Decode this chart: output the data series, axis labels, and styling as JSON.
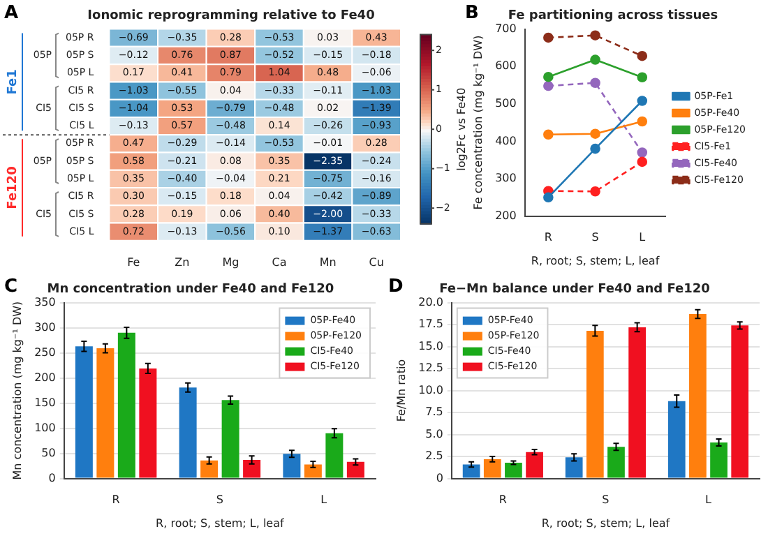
{
  "chart_data": [
    {
      "type": "heatmap",
      "title": "Ionomic reprogramming relative to Fe40",
      "categories": [
        "Fe",
        "Zn",
        "Mg",
        "Ca",
        "Mn",
        "Cu"
      ],
      "y_categories": [
        "05P R",
        "05P S",
        "05P L",
        "CI5 R",
        "CI5 S",
        "CI5 L",
        "05P R",
        "05P S",
        "05P L",
        "CI5 R",
        "CI5 S",
        "CI5 L"
      ],
      "cells": [
        [
          -0.69,
          -0.35,
          0.28,
          -0.53,
          0.03,
          0.43
        ],
        [
          -0.12,
          0.76,
          0.87,
          -0.52,
          -0.15,
          -0.18
        ],
        [
          0.17,
          0.41,
          0.79,
          1.04,
          0.48,
          -0.06
        ],
        [
          -1.03,
          -0.55,
          0.04,
          -0.33,
          -0.11,
          -1.03
        ],
        [
          -1.04,
          0.53,
          -0.79,
          -0.48,
          0.02,
          -1.39
        ],
        [
          -0.13,
          0.57,
          -0.48,
          0.14,
          -0.26,
          -0.93
        ],
        [
          0.47,
          -0.29,
          -0.14,
          -0.53,
          -0.01,
          0.28
        ],
        [
          0.58,
          -0.21,
          0.08,
          0.35,
          -2.35,
          -0.24
        ],
        [
          0.35,
          -0.4,
          -0.04,
          0.21,
          -0.75,
          -0.16
        ],
        [
          0.3,
          -0.15,
          0.18,
          0.04,
          -0.42,
          -0.89
        ],
        [
          0.28,
          0.19,
          0.06,
          0.4,
          -2.0,
          -0.33
        ],
        [
          0.72,
          -0.13,
          -0.56,
          0.1,
          -1.37,
          -0.63
        ]
      ],
      "cell_labels": [
        [
          "−0.69",
          "−0.35",
          "0.28",
          "−0.53",
          "0.03",
          "0.43"
        ],
        [
          "−0.12",
          "0.76",
          "0.87",
          "−0.52",
          "−0.15",
          "−0.18"
        ],
        [
          "0.17",
          "0.41",
          "0.79",
          "1.04",
          "0.48",
          "−0.06"
        ],
        [
          "−1.03",
          "−0.55",
          "0.04",
          "−0.33",
          "−0.11",
          "−1.03"
        ],
        [
          "−1.04",
          "0.53",
          "−0.79",
          "−0.48",
          "0.02",
          "−1.39"
        ],
        [
          "−0.13",
          "0.57",
          "−0.48",
          "0.14",
          "−0.26",
          "−0.93"
        ],
        [
          "0.47",
          "−0.29",
          "−0.14",
          "−0.53",
          "−0.01",
          "0.28"
        ],
        [
          "0.58",
          "−0.21",
          "0.08",
          "0.35",
          "−2.35",
          "−0.24"
        ],
        [
          "0.35",
          "−0.40",
          "−0.04",
          "0.21",
          "−0.75",
          "−0.16"
        ],
        [
          "0.30",
          "−0.15",
          "0.18",
          "0.04",
          "−0.42",
          "−0.89"
        ],
        [
          "0.28",
          "0.19",
          "0.06",
          "0.40",
          "−2.00",
          "−0.33"
        ],
        [
          "0.72",
          "−0.13",
          "−0.56",
          "0.10",
          "−1.37",
          "−0.63"
        ]
      ],
      "data_labels": true,
      "clim": [
        -2.4,
        2.4
      ],
      "cticks": [
        -2,
        -1,
        0,
        1,
        2
      ],
      "clabel": "log2Fc vs Fe40",
      "annotations": [
        "A",
        "Fe1",
        "05P",
        "CI5",
        "Fe120",
        "05P",
        "CI5"
      ]
    },
    {
      "type": "line",
      "title": "Fe partitioning across tissues",
      "categories": [
        "R",
        "S",
        "L"
      ],
      "xlabel": "R, root; S, stem; L, leaf",
      "ylabel": "Fe concentration (mg kg⁻¹ DW)",
      "ylim": [
        200,
        700
      ],
      "yticks": [
        200,
        300,
        400,
        500,
        600,
        700
      ],
      "legend": "right",
      "marker": "circle",
      "annotations": [
        "B"
      ],
      "series": [
        {
          "name": "05P-Fe1",
          "color": "#1f77b4",
          "values": [
            250,
            380,
            508
          ],
          "line_style": "solid"
        },
        {
          "name": "05P-Fe40",
          "color": "#ff7f0e",
          "values": [
            418,
            420,
            453
          ],
          "line_style": "solid"
        },
        {
          "name": "05P-Fe120",
          "color": "#2ca02c",
          "values": [
            572,
            618,
            571
          ],
          "line_style": "solid"
        },
        {
          "name": "CI5-Fe1",
          "color": "#ff2020",
          "values": [
            267,
            266,
            345
          ],
          "line_style": "dashed"
        },
        {
          "name": "CI5-Fe40",
          "color": "#9467bd",
          "values": [
            548,
            556,
            370
          ],
          "line_style": "dashed"
        },
        {
          "name": "CI5-Fe120",
          "color": "#8c2d19",
          "values": [
            677,
            683,
            628
          ],
          "line_style": "dashed"
        }
      ]
    },
    {
      "type": "bar",
      "title": "Mn concentration under Fe40 and Fe120",
      "categories": [
        "R",
        "S",
        "L"
      ],
      "xlabel": "R, root; S, stem; L, leaf",
      "ylabel": "Mn concentration (mg kg⁻¹ DW)",
      "ylim": [
        0,
        350
      ],
      "yticks": [
        0,
        50,
        100,
        150,
        200,
        250,
        300,
        350
      ],
      "grid": "y",
      "legend": "top right",
      "annotations": [
        "C"
      ],
      "series": [
        {
          "name": "05P-Fe40",
          "color": "#1f77c4",
          "values": [
            263,
            181,
            49
          ],
          "errors": [
            10,
            9,
            7
          ]
        },
        {
          "name": "05P-Fe120",
          "color": "#ff7f0e",
          "values": [
            259,
            36,
            28
          ],
          "errors": [
            9,
            7,
            6
          ]
        },
        {
          "name": "CI5-Fe40",
          "color": "#1aaa1a",
          "values": [
            290,
            156,
            90
          ],
          "errors": [
            11,
            8,
            9
          ]
        },
        {
          "name": "CI5-Fe120",
          "color": "#f01020",
          "values": [
            219,
            37,
            33
          ],
          "errors": [
            10,
            8,
            6
          ]
        }
      ]
    },
    {
      "type": "bar",
      "title": "Fe−Mn balance under Fe40 and Fe120",
      "categories": [
        "R",
        "S",
        "L"
      ],
      "xlabel": "R, root; S, stem; L, leaf",
      "ylabel": "Fe/Mn ratio",
      "ylim": [
        0,
        20
      ],
      "yticks": [
        0,
        {
          "value": 2.5,
          "label": "2.5"
        },
        {
          "value": 5,
          "label": "5.0"
        },
        {
          "value": 7.5,
          "label": "7.5"
        },
        {
          "value": 10,
          "label": "10.0"
        },
        {
          "value": 12.5,
          "label": "12.5"
        },
        {
          "value": 15,
          "label": "15.0"
        },
        {
          "value": 17.5,
          "label": "17.5"
        },
        {
          "value": 20,
          "label": "20.0"
        }
      ],
      "grid": "y",
      "legend": "top left",
      "annotations": [
        "D"
      ],
      "series": [
        {
          "name": "05P-Fe40",
          "color": "#1f77c4",
          "values": [
            1.6,
            2.4,
            8.8
          ],
          "errors": [
            0.3,
            0.4,
            0.7
          ]
        },
        {
          "name": "05P-Fe120",
          "color": "#ff7f0e",
          "values": [
            2.2,
            16.8,
            18.7
          ],
          "errors": [
            0.3,
            0.6,
            0.5
          ]
        },
        {
          "name": "CI5-Fe40",
          "color": "#1aaa1a",
          "values": [
            1.8,
            3.6,
            4.1
          ],
          "errors": [
            0.2,
            0.4,
            0.4
          ]
        },
        {
          "name": "CI5-Fe120",
          "color": "#f01020",
          "values": [
            3.0,
            17.2,
            17.4
          ],
          "errors": [
            0.3,
            0.5,
            0.4
          ]
        }
      ]
    }
  ]
}
